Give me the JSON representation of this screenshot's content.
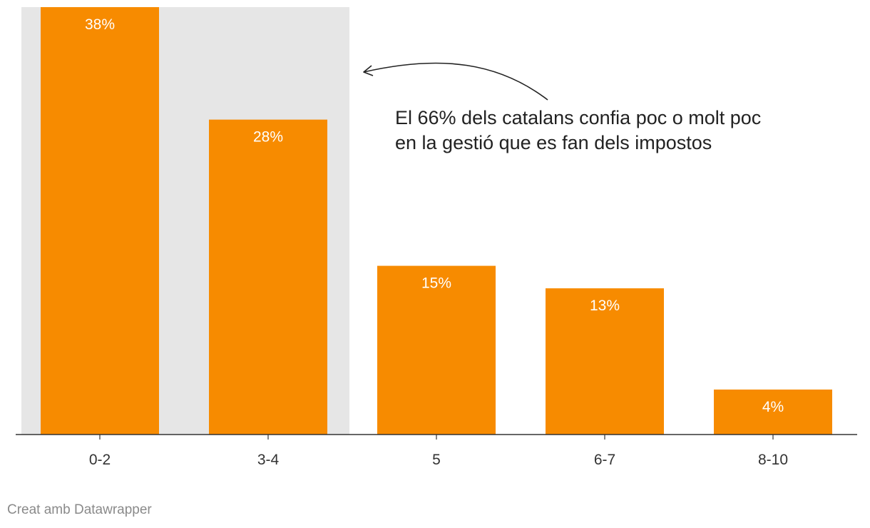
{
  "chart_data": {
    "type": "bar",
    "categories": [
      "0-2",
      "3-4",
      "5",
      "6-7",
      "8-10"
    ],
    "values": [
      38,
      28,
      15,
      13,
      4
    ],
    "value_labels": [
      "38%",
      "28%",
      "15%",
      "13%",
      "4%"
    ],
    "unit": "%",
    "ylim": [
      0,
      38
    ],
    "grid": false,
    "highlight_categories": [
      "0-2",
      "3-4"
    ],
    "annotation": {
      "lines": [
        "El 66% dels catalans confia poc o molt poc",
        "en la gestió que es fan dels impostos"
      ],
      "points_to": "3-4"
    },
    "colors": {
      "bar": "#f78b00",
      "highlight_band": "#e6e6e6",
      "axis": "#333333",
      "bar_label": "#ffffff"
    }
  },
  "footer": {
    "credit": "Creat amb Datawrapper"
  }
}
